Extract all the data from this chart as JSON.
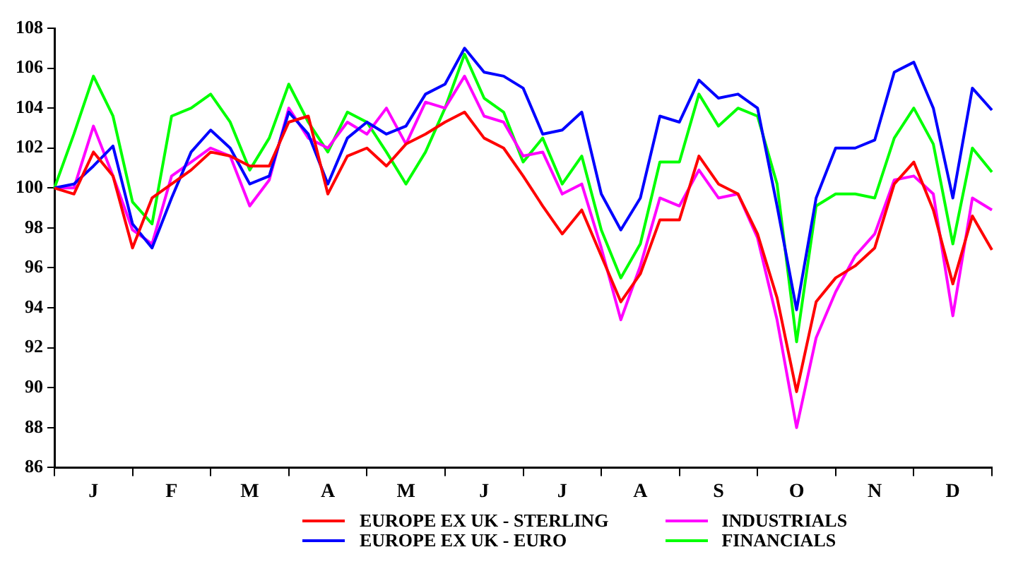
{
  "chart_data": {
    "type": "line",
    "categories": [
      null,
      null,
      "J",
      null,
      null,
      null,
      "F",
      null,
      null,
      null,
      "M",
      null,
      null,
      null,
      "A",
      null,
      null,
      null,
      "M",
      null,
      null,
      null,
      "J",
      null,
      null,
      null,
      "J",
      null,
      null,
      null,
      "A",
      null,
      null,
      null,
      "S",
      null,
      null,
      null,
      "O",
      null,
      null,
      null,
      "N",
      null,
      null,
      null,
      "D",
      null,
      null
    ],
    "series": [
      {
        "name": "EUROPE EX UK - STERLING",
        "color": "#ff0000",
        "values": [
          100,
          99.7,
          101.8,
          100.6,
          97,
          99.5,
          100.2,
          100.9,
          101.8,
          101.6,
          101.1,
          101.1,
          103.3,
          103.6,
          99.7,
          101.6,
          102,
          101.1,
          102.2,
          102.7,
          103.3,
          103.8,
          102.5,
          102,
          100.6,
          99.1,
          97.7,
          98.9,
          96.6,
          94.3,
          95.7,
          98.4,
          98.4,
          101.6,
          100.2,
          99.7,
          97.7,
          94.5,
          89.8,
          94.3,
          95.5,
          96.1,
          97,
          100.2,
          101.3,
          98.9,
          95.2,
          98.6,
          96.9
        ]
      },
      {
        "name": "EUROPE EX UK - EURO",
        "color": "#0000ff",
        "values": [
          100,
          100.2,
          101.1,
          102.1,
          98.2,
          97,
          99.5,
          101.8,
          102.9,
          102,
          100.2,
          100.6,
          103.8,
          102.7,
          100.2,
          102.5,
          103.3,
          102.7,
          103.1,
          104.7,
          105.2,
          107,
          105.8,
          105.6,
          105,
          102.7,
          102.9,
          103.8,
          99.7,
          97.9,
          99.5,
          103.6,
          103.3,
          105.4,
          104.5,
          104.7,
          104,
          99.1,
          93.9,
          99.5,
          102,
          102,
          102.4,
          105.8,
          106.3,
          104,
          99.5,
          105,
          103.9
        ]
      },
      {
        "name": "INDUSTRIALS",
        "color": "#ff00ff",
        "values": [
          100,
          100,
          103.1,
          100.6,
          97.9,
          97.2,
          100.6,
          101.3,
          102,
          101.6,
          99.1,
          100.4,
          104,
          102.5,
          102,
          103.3,
          102.7,
          104,
          102.2,
          104.3,
          104,
          105.6,
          103.6,
          103.3,
          101.6,
          101.8,
          99.7,
          100.2,
          97,
          93.4,
          96.1,
          99.5,
          99.1,
          100.9,
          99.5,
          99.7,
          97.5,
          93.4,
          88,
          92.5,
          94.8,
          96.6,
          97.7,
          100.4,
          100.6,
          99.7,
          93.6,
          99.5,
          98.9
        ]
      },
      {
        "name": "FINANCIALS",
        "color": "#00ff00",
        "values": [
          100,
          102.7,
          105.6,
          103.6,
          99.3,
          98.2,
          103.6,
          104,
          104.7,
          103.3,
          100.9,
          102.5,
          105.2,
          103.3,
          101.8,
          103.8,
          103.3,
          101.8,
          100.2,
          101.8,
          104,
          106.7,
          104.5,
          103.8,
          101.3,
          102.5,
          100.2,
          101.6,
          97.9,
          95.5,
          97.2,
          101.3,
          101.3,
          104.7,
          103.1,
          104,
          103.6,
          100.2,
          92.3,
          99.1,
          99.7,
          99.7,
          99.5,
          102.5,
          104,
          102.2,
          97.2,
          102,
          100.8
        ]
      }
    ],
    "ylim": [
      86,
      108
    ],
    "yticks": [
      86,
      88,
      90,
      92,
      94,
      96,
      98,
      100,
      102,
      104,
      106,
      108
    ],
    "grid": false,
    "legend": "bottom",
    "marker": "none",
    "line_style": "solid"
  }
}
